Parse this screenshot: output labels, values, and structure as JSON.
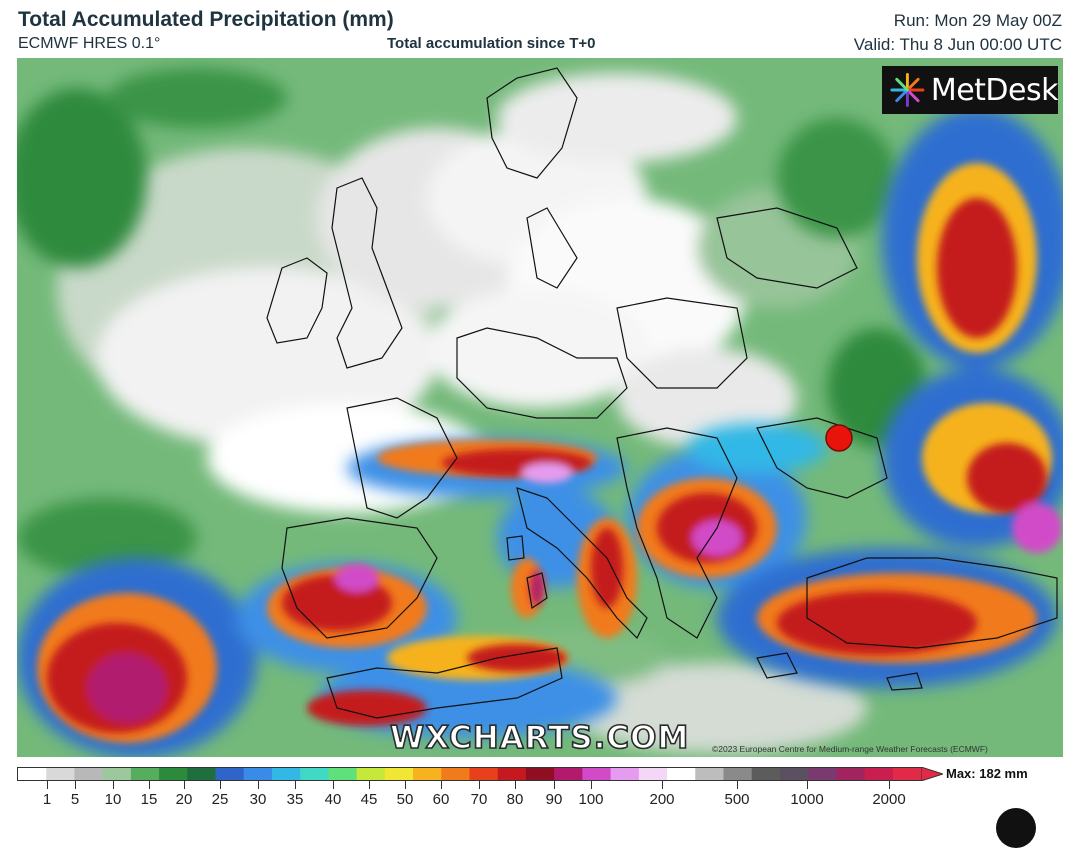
{
  "header": {
    "title": "Total Accumulated Precipitation (mm)",
    "model": "ECMWF HRES 0.1°",
    "subtitle": "Total accumulation since T+0",
    "run": "Run: Mon 29 May 00Z",
    "valid": "Valid: Thu 8 Jun 00:00 UTC"
  },
  "logo": {
    "text": "MetDesk",
    "icon": "metdesk-burst-icon"
  },
  "watermark": "WXCHARTS.COM",
  "copyright": "©2023 European Centre for Medium-range Weather Forecasts (ECMWF)",
  "marker": {
    "color": "#e8140c",
    "icon": "location-dot-icon"
  },
  "legend": {
    "max_label": "Max: 182 mm",
    "ticks": [
      "1",
      "5",
      "10",
      "15",
      "20",
      "25",
      "30",
      "35",
      "40",
      "45",
      "50",
      "60",
      "70",
      "80",
      "90",
      "100",
      "200",
      "500",
      "1000",
      "2000"
    ],
    "colors": [
      "#ffffff",
      "#d9d9d9",
      "#b8b8b8",
      "#9cc89d",
      "#56ad5e",
      "#2c8a3c",
      "#1f6e3e",
      "#2f64c8",
      "#3a8be8",
      "#33b8e6",
      "#3fd9c6",
      "#5fe07a",
      "#c6e83a",
      "#f2e634",
      "#f6b21f",
      "#f17a1a",
      "#e8401a",
      "#c41a1f",
      "#8f0e22",
      "#b21a6e",
      "#d14bc8",
      "#e59cf0",
      "#f4d6f6",
      "#ffffff",
      "#bdbdbd",
      "#8a8a8a",
      "#5c5c5c",
      "#5b5060",
      "#7a3a70",
      "#a0255e",
      "#c81e50",
      "#e02a48"
    ]
  }
}
